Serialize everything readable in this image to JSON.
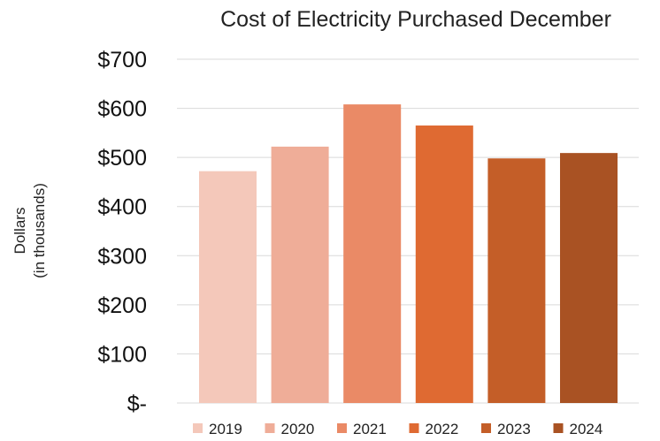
{
  "chart_data": {
    "type": "bar",
    "title": "Cost of Electricity Purchased December",
    "ylabel_line1": "Dollars",
    "ylabel_line2": "(in thousands)",
    "xlabel": "",
    "ylim": [
      0,
      700
    ],
    "yticks": [
      {
        "value": 0,
        "label": "$-"
      },
      {
        "value": 100,
        "label": "$100"
      },
      {
        "value": 200,
        "label": "$200"
      },
      {
        "value": 300,
        "label": "$300"
      },
      {
        "value": 400,
        "label": "$400"
      },
      {
        "value": 500,
        "label": "$500"
      },
      {
        "value": 600,
        "label": "$600"
      },
      {
        "value": 700,
        "label": "$700"
      }
    ],
    "grid": true,
    "legend_position": "bottom",
    "series": [
      {
        "name": "2019",
        "value": 472,
        "color": "#F4C8BA"
      },
      {
        "name": "2020",
        "value": 522,
        "color": "#EFAD98"
      },
      {
        "name": "2021",
        "value": 608,
        "color": "#EA8A66"
      },
      {
        "name": "2022",
        "value": 565,
        "color": "#DF6A32"
      },
      {
        "name": "2023",
        "value": 498,
        "color": "#C45E28"
      },
      {
        "name": "2024",
        "value": 509,
        "color": "#A95223"
      }
    ]
  }
}
